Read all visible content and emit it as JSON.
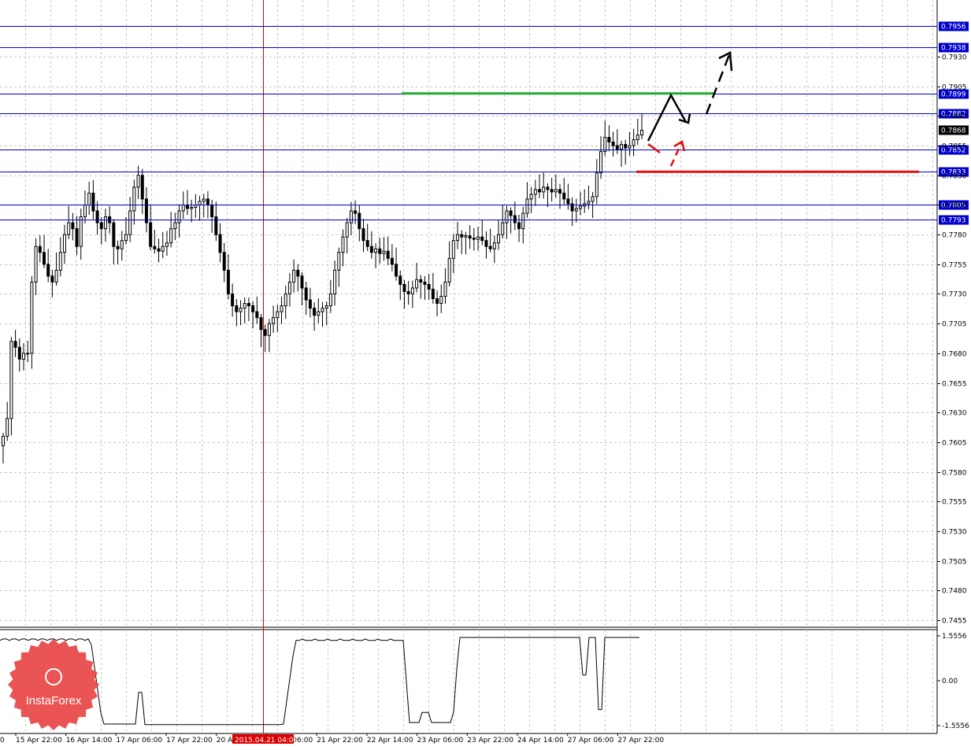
{
  "chart_data": [
    {
      "type": "candlestick",
      "symbol_note": "",
      "y_ticks": [
        "0.7930",
        "0.7905",
        "0.7880",
        "0.7855",
        "0.7830",
        "0.7805",
        "0.7780",
        "0.7755",
        "0.7730",
        "0.7705",
        "0.7680",
        "0.7655",
        "0.7630",
        "0.7605",
        "0.7580",
        "0.7555",
        "0.7530",
        "0.7505",
        "0.7480",
        "0.7455"
      ],
      "x_ticks": [
        "15 Apr 22:00",
        "16 Apr 14:00",
        "17 Apr 06:00",
        "17 Apr 22:00",
        "20 Apr 14:00",
        "21 Apr 06:00",
        "21 Apr 22:00",
        "22 Apr 14:00",
        "23 Apr 06:00",
        "23 Apr 22:00",
        "24 Apr 14:00",
        "27 Apr 06:00",
        "27 Apr 22:00"
      ],
      "x_tick_first_visible": "0",
      "ylim": [
        0.744,
        0.799
      ],
      "grid": true,
      "crosshair_time_label": "2015.04.21 04:00",
      "current_price": "0.7868",
      "horizontal_levels": [
        {
          "value": "0.7956",
          "color": "#0000cc"
        },
        {
          "value": "0.7938",
          "color": "#0000cc"
        },
        {
          "value": "0.7899",
          "color": "#0000cc"
        },
        {
          "value": "0.7882",
          "color": "#0000cc"
        },
        {
          "value": "0.7852",
          "color": "#0000cc"
        },
        {
          "value": "0.7833",
          "color": "#0000cc"
        },
        {
          "value": "0.7805",
          "color": "#0000cc"
        },
        {
          "value": "0.7793",
          "color": "#0000cc"
        }
      ],
      "support_line": {
        "value": 0.7833,
        "color": "#dd1111"
      },
      "resistance_line": {
        "value": 0.7899,
        "color": "#22aa33"
      },
      "close_series": [
        0.761,
        0.7625,
        0.769,
        0.7685,
        0.7675,
        0.768,
        0.768,
        0.774,
        0.777,
        0.7765,
        0.7755,
        0.7745,
        0.774,
        0.775,
        0.7765,
        0.778,
        0.779,
        0.7785,
        0.777,
        0.7795,
        0.7805,
        0.7815,
        0.78,
        0.779,
        0.7785,
        0.7795,
        0.779,
        0.777,
        0.7768,
        0.7775,
        0.778,
        0.78,
        0.782,
        0.783,
        0.781,
        0.779,
        0.777,
        0.7768,
        0.7766,
        0.777,
        0.7773,
        0.7785,
        0.779,
        0.78,
        0.7805,
        0.7802,
        0.7803,
        0.7805,
        0.7808,
        0.781,
        0.7805,
        0.7795,
        0.778,
        0.7765,
        0.775,
        0.773,
        0.772,
        0.7715,
        0.7718,
        0.7722,
        0.772,
        0.7715,
        0.771,
        0.77,
        0.7695,
        0.7705,
        0.771,
        0.7715,
        0.772,
        0.773,
        0.774,
        0.775,
        0.7745,
        0.7735,
        0.7725,
        0.7718,
        0.7712,
        0.7715,
        0.7718,
        0.772,
        0.773,
        0.775,
        0.7765,
        0.7778,
        0.779,
        0.78,
        0.7798,
        0.7785,
        0.7775,
        0.777,
        0.7765,
        0.7768,
        0.7764,
        0.7766,
        0.776,
        0.7755,
        0.7745,
        0.7738,
        0.7732,
        0.773,
        0.7735,
        0.7742,
        0.774,
        0.7738,
        0.7734,
        0.7726,
        0.7722,
        0.7728,
        0.774,
        0.776,
        0.7775,
        0.778,
        0.7778,
        0.7779,
        0.7777,
        0.7776,
        0.7778,
        0.7775,
        0.777,
        0.7768,
        0.7773,
        0.778,
        0.779,
        0.78,
        0.7796,
        0.779,
        0.7785,
        0.7798,
        0.781,
        0.7814,
        0.7818,
        0.7816,
        0.782,
        0.7818,
        0.7816,
        0.7818,
        0.7815,
        0.781,
        0.7806,
        0.78,
        0.7802,
        0.7804,
        0.7806,
        0.7808,
        0.7812,
        0.7832,
        0.785,
        0.7862,
        0.7858,
        0.7855,
        0.7852,
        0.7856,
        0.7853,
        0.7855,
        0.786,
        0.7864,
        0.7868
      ],
      "indicator": {
        "y_ticks": [
          "1.5556",
          "0.00",
          "-1.5556"
        ],
        "ylim": [
          -1.75,
          1.75
        ]
      }
    }
  ],
  "logo": {
    "text": "InstaForex"
  }
}
